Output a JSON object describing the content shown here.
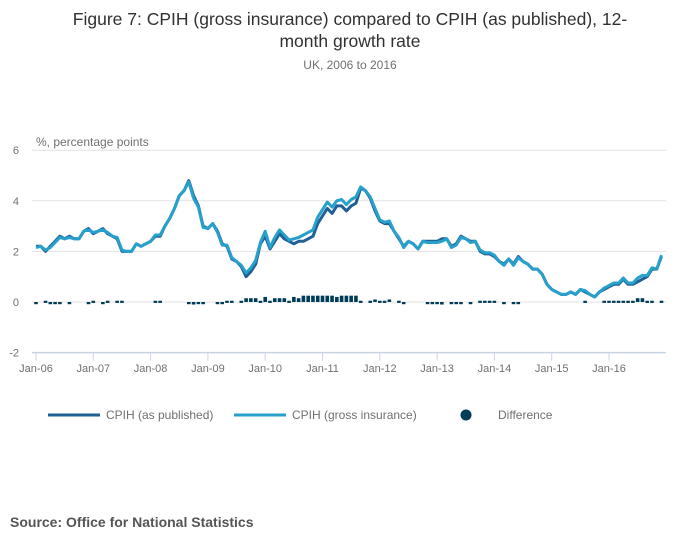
{
  "chart_data": {
    "type": "line",
    "title": "Figure 7: CPIH (gross insurance) compared to CPIH (as published), 12-month growth rate",
    "title_line1": "Figure 7: CPIH (gross insurance) compared to CPIH (as published), 12-",
    "title_line2": "month growth rate",
    "subtitle": "UK, 2006 to 2016",
    "ylabel": "%, percentage points",
    "ylim": [
      -2,
      6
    ],
    "yticks": [
      "-2",
      "0",
      "2",
      "4",
      "6"
    ],
    "xticks": [
      "Jan-06",
      "Jan-07",
      "Jan-08",
      "Jan-09",
      "Jan-10",
      "Jan-11",
      "Jan-12",
      "Jan-13",
      "Jan-14",
      "Jan-15",
      "Jan-16"
    ],
    "x_start": "Jan-06",
    "x_months": 132,
    "grid": true,
    "legend_position": "bottom",
    "series": [
      {
        "name": "CPIH (as published)",
        "type": "line",
        "color": "#206095",
        "values": [
          2.2,
          2.2,
          2.0,
          2.2,
          2.4,
          2.6,
          2.5,
          2.6,
          2.5,
          2.5,
          2.8,
          2.9,
          2.7,
          2.8,
          2.9,
          2.7,
          2.6,
          2.5,
          2.0,
          2.0,
          2.0,
          2.3,
          2.2,
          2.3,
          2.4,
          2.6,
          2.6,
          3.0,
          3.3,
          3.7,
          4.2,
          4.4,
          4.8,
          4.2,
          3.8,
          3.0,
          2.9,
          3.1,
          2.8,
          2.3,
          2.2,
          1.7,
          1.6,
          1.4,
          1.0,
          1.2,
          1.5,
          2.3,
          2.6,
          2.1,
          2.4,
          2.7,
          2.5,
          2.4,
          2.3,
          2.4,
          2.4,
          2.5,
          2.6,
          3.1,
          3.4,
          3.7,
          3.5,
          3.8,
          3.8,
          3.6,
          3.8,
          3.9,
          4.5,
          4.4,
          4.1,
          3.6,
          3.2,
          3.1,
          3.1,
          2.8,
          2.5,
          2.2,
          2.4,
          2.3,
          2.1,
          2.4,
          2.4,
          2.4,
          2.4,
          2.5,
          2.5,
          2.2,
          2.3,
          2.6,
          2.5,
          2.4,
          2.4,
          2.0,
          1.9,
          1.9,
          1.8,
          1.6,
          1.5,
          1.7,
          1.5,
          1.8,
          1.6,
          1.5,
          1.3,
          1.3,
          1.1,
          0.7,
          0.5,
          0.4,
          0.3,
          0.3,
          0.4,
          0.3,
          0.5,
          0.4,
          0.3,
          0.2,
          0.4,
          0.5,
          0.6,
          0.7,
          0.7,
          0.9,
          0.7,
          0.7,
          0.8,
          0.9,
          1.0,
          1.3,
          1.3,
          1.8
        ]
      },
      {
        "name": "CPIH (gross insurance)",
        "type": "line",
        "color": "#27a0cc",
        "values": [
          2.15,
          2.2,
          2.05,
          2.15,
          2.35,
          2.55,
          2.5,
          2.55,
          2.5,
          2.5,
          2.8,
          2.85,
          2.75,
          2.8,
          2.85,
          2.75,
          2.6,
          2.55,
          2.05,
          2.0,
          2.0,
          2.3,
          2.2,
          2.3,
          2.4,
          2.65,
          2.65,
          3.0,
          3.3,
          3.7,
          4.2,
          4.4,
          4.75,
          4.1,
          3.75,
          2.95,
          2.9,
          3.1,
          2.75,
          2.25,
          2.25,
          1.75,
          1.6,
          1.45,
          1.15,
          1.35,
          1.65,
          2.35,
          2.8,
          2.15,
          2.55,
          2.85,
          2.65,
          2.45,
          2.5,
          2.55,
          2.65,
          2.75,
          2.85,
          3.35,
          3.65,
          3.95,
          3.75,
          4.0,
          4.05,
          3.85,
          4.05,
          4.15,
          4.55,
          4.4,
          4.15,
          3.7,
          3.25,
          3.15,
          3.2,
          2.8,
          2.55,
          2.15,
          2.4,
          2.3,
          2.1,
          2.4,
          2.35,
          2.35,
          2.35,
          2.4,
          2.5,
          2.15,
          2.25,
          2.55,
          2.5,
          2.35,
          2.4,
          2.05,
          1.95,
          1.95,
          1.85,
          1.6,
          1.45,
          1.7,
          1.45,
          1.75,
          1.6,
          1.5,
          1.3,
          1.3,
          1.1,
          0.7,
          0.5,
          0.4,
          0.3,
          0.3,
          0.4,
          0.3,
          0.5,
          0.45,
          0.3,
          0.2,
          0.4,
          0.55,
          0.65,
          0.75,
          0.75,
          0.95,
          0.75,
          0.75,
          0.95,
          1.05,
          1.05,
          1.35,
          1.3,
          1.85
        ]
      },
      {
        "name": "Difference",
        "type": "bar",
        "color": "#003c57",
        "values": [
          -0.05,
          0,
          0.05,
          -0.05,
          -0.05,
          -0.05,
          0,
          -0.05,
          0,
          0,
          0,
          -0.05,
          0.05,
          0,
          -0.05,
          0.05,
          0,
          0.05,
          0.05,
          0,
          0,
          0,
          0,
          0,
          0,
          0.05,
          0.05,
          0,
          0,
          0,
          0,
          0,
          -0.05,
          -0.1,
          -0.05,
          -0.05,
          0,
          0,
          -0.05,
          -0.05,
          0.05,
          0.05,
          0,
          0.05,
          0.15,
          0.15,
          0.15,
          0.05,
          0.2,
          0.05,
          0.15,
          0.15,
          0.15,
          0.05,
          0.2,
          0.15,
          0.25,
          0.25,
          0.25,
          0.25,
          0.25,
          0.25,
          0.25,
          0.2,
          0.25,
          0.25,
          0.25,
          0.25,
          0.05,
          0,
          0.05,
          0.1,
          0.05,
          0.05,
          0.1,
          0,
          0.05,
          -0.05,
          0,
          0,
          0,
          0,
          -0.05,
          -0.05,
          -0.05,
          -0.1,
          0,
          -0.05,
          -0.05,
          -0.05,
          0,
          -0.05,
          0,
          0.05,
          0.05,
          0.05,
          0.05,
          0,
          -0.05,
          0,
          -0.05,
          -0.05,
          0,
          0,
          0,
          0,
          0,
          0,
          0,
          0,
          0,
          0,
          0,
          0,
          0,
          0.05,
          0,
          0,
          0,
          0.05,
          0.05,
          0.05,
          0.05,
          0.05,
          0.05,
          0.05,
          0.15,
          0.15,
          0.05,
          0.05,
          0,
          0.05
        ]
      }
    ],
    "source": "Source: Office for National Statistics"
  }
}
